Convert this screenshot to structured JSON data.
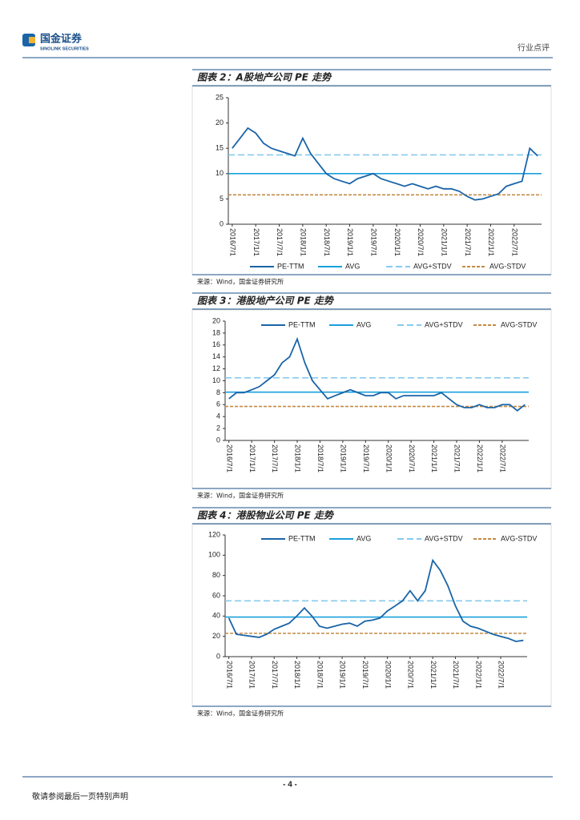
{
  "header": {
    "company": "国金证券",
    "company_en": "SINOLINK SECURITIES",
    "report_type": "行业点评"
  },
  "chart_data": [
    {
      "type": "line",
      "title": "图表 2：A股地产公司 PE 走势",
      "source": "来源：Wind，国金证券研究所",
      "legend": "bottom",
      "categories": [
        "2016/7/1",
        null,
        null,
        "2017/1/1",
        null,
        null,
        "2017/7/1",
        null,
        null,
        "2018/1/1",
        null,
        null,
        "2018/7/1",
        null,
        null,
        "2019/1/1",
        null,
        null,
        "2019/7/1",
        null,
        null,
        "2020/1/1",
        null,
        null,
        "2020/7/1",
        null,
        null,
        "2021/1/1",
        null,
        null,
        "2021/7/1",
        null,
        null,
        "2022/1/1",
        null,
        null,
        "2022/7/1",
        null,
        null,
        null
      ],
      "series": [
        {
          "name": "PE-TTM",
          "color": "#1a64a8",
          "values": [
            15,
            17,
            19,
            18,
            16,
            15,
            14.5,
            14,
            13.5,
            17,
            14,
            12,
            10,
            9,
            8.5,
            8,
            9,
            9.5,
            10,
            9,
            8.5,
            8,
            7.5,
            8,
            7.5,
            7,
            7.5,
            7,
            7,
            6.5,
            5.5,
            4.8,
            5,
            5.5,
            6,
            7.5,
            8,
            8.5,
            15,
            13.5
          ]
        }
      ],
      "reference_lines": [
        {
          "name": "AVG",
          "value": 10,
          "color": "#1aa0dc",
          "dashed": false
        },
        {
          "name": "AVG+STDV",
          "value": 13.7,
          "color": "#86cbef",
          "dashed": true
        },
        {
          "name": "AVG-STDV",
          "value": 5.8,
          "color": "#c48a45",
          "dashed": true
        }
      ],
      "ylim": [
        0,
        25
      ],
      "yticks": [
        0,
        5,
        10,
        15,
        20,
        25
      ]
    },
    {
      "type": "line",
      "title": "图表 3：港股地产公司 PE 走势",
      "source": "来源：Wind，国金证券研究所",
      "legend": "top",
      "categories": [
        "2016/7/1",
        null,
        null,
        "2017/1/1",
        null,
        null,
        "2017/7/1",
        null,
        null,
        "2018/1/1",
        null,
        null,
        "2018/7/1",
        null,
        null,
        "2019/1/1",
        null,
        null,
        "2019/7/1",
        null,
        null,
        "2020/1/1",
        null,
        null,
        "2020/7/1",
        null,
        null,
        "2021/1/1",
        null,
        null,
        "2021/7/1",
        null,
        null,
        "2022/1/1",
        null,
        null,
        "2022/7/1",
        null,
        null,
        null
      ],
      "series": [
        {
          "name": "PE-TTM",
          "color": "#1a64a8",
          "values": [
            7,
            8,
            8,
            8.5,
            9,
            10,
            11,
            13,
            14,
            17,
            13,
            10,
            8.5,
            7,
            7.5,
            8,
            8.5,
            8,
            7.5,
            7.5,
            8,
            8,
            7,
            7.5,
            7.5,
            7.5,
            7.5,
            7.5,
            8,
            7,
            6,
            5.5,
            5.5,
            6,
            5.5,
            5.5,
            6,
            6,
            5,
            6
          ]
        }
      ],
      "reference_lines": [
        {
          "name": "AVG",
          "value": 8.1,
          "color": "#1aa0dc",
          "dashed": false
        },
        {
          "name": "AVG+STDV",
          "value": 10.5,
          "color": "#86cbef",
          "dashed": true
        },
        {
          "name": "AVG-STDV",
          "value": 5.7,
          "color": "#c48a45",
          "dashed": true
        }
      ],
      "ylim": [
        0,
        20
      ],
      "yticks": [
        0,
        2,
        4,
        6,
        8,
        10,
        12,
        14,
        16,
        18,
        20
      ]
    },
    {
      "type": "line",
      "title": "图表 4：港股物业公司 PE 走势",
      "source": "来源：Wind，国金证券研究所",
      "legend": "top",
      "categories": [
        "2016/7/1",
        null,
        null,
        "2017/1/1",
        null,
        null,
        "2017/7/1",
        null,
        null,
        "2018/1/1",
        null,
        null,
        "2018/7/1",
        null,
        null,
        "2019/1/1",
        null,
        null,
        "2019/7/1",
        null,
        null,
        "2020/1/1",
        null,
        null,
        "2020/7/1",
        null,
        null,
        "2021/1/1",
        null,
        null,
        "2021/7/1",
        null,
        null,
        "2022/1/1",
        null,
        null,
        "2022/7/1",
        null,
        null,
        null
      ],
      "series": [
        {
          "name": "PE-TTM",
          "color": "#1a64a8",
          "values": [
            38,
            22,
            21,
            20,
            19,
            22,
            27,
            30,
            33,
            40,
            48,
            40,
            30,
            28,
            30,
            32,
            33,
            30,
            35,
            36,
            38,
            45,
            50,
            55,
            65,
            55,
            65,
            95,
            85,
            70,
            50,
            35,
            30,
            28,
            25,
            22,
            20,
            18,
            15,
            16
          ]
        }
      ],
      "reference_lines": [
        {
          "name": "AVG",
          "value": 39,
          "color": "#1aa0dc",
          "dashed": false
        },
        {
          "name": "AVG+STDV",
          "value": 55,
          "color": "#86cbef",
          "dashed": true
        },
        {
          "name": "AVG-STDV",
          "value": 23,
          "color": "#c48a45",
          "dashed": true
        }
      ],
      "ylim": [
        0,
        120
      ],
      "yticks": [
        0,
        20,
        40,
        60,
        80,
        100,
        120
      ]
    }
  ],
  "footer": {
    "page": "- 4 -",
    "disclaimer": "敬请参阅最后一页特别声明"
  }
}
